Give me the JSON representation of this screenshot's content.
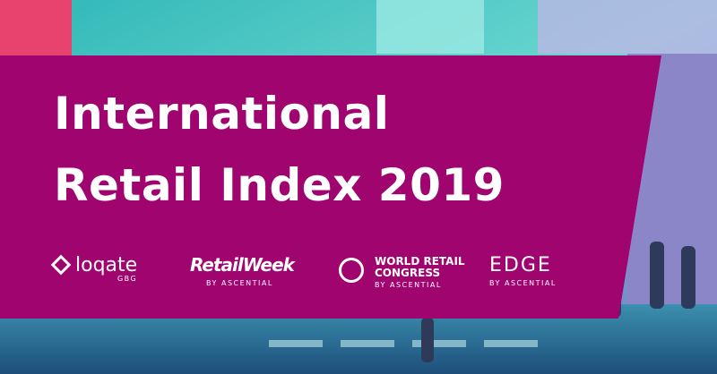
{
  "title": {
    "lines": [
      "International",
      "Retail Index 2019"
    ]
  },
  "logos": [
    {
      "name": "loqate",
      "sub": "GBG"
    },
    {
      "name": "RetailWeek",
      "sub": "BY ASCENTIAL"
    },
    {
      "name": "WORLD RETAIL",
      "name2": "CONGRESS",
      "sub": "BY ASCENTIAL"
    },
    {
      "name": "EDGE",
      "sub": "BY ASCENTIAL"
    }
  ]
}
